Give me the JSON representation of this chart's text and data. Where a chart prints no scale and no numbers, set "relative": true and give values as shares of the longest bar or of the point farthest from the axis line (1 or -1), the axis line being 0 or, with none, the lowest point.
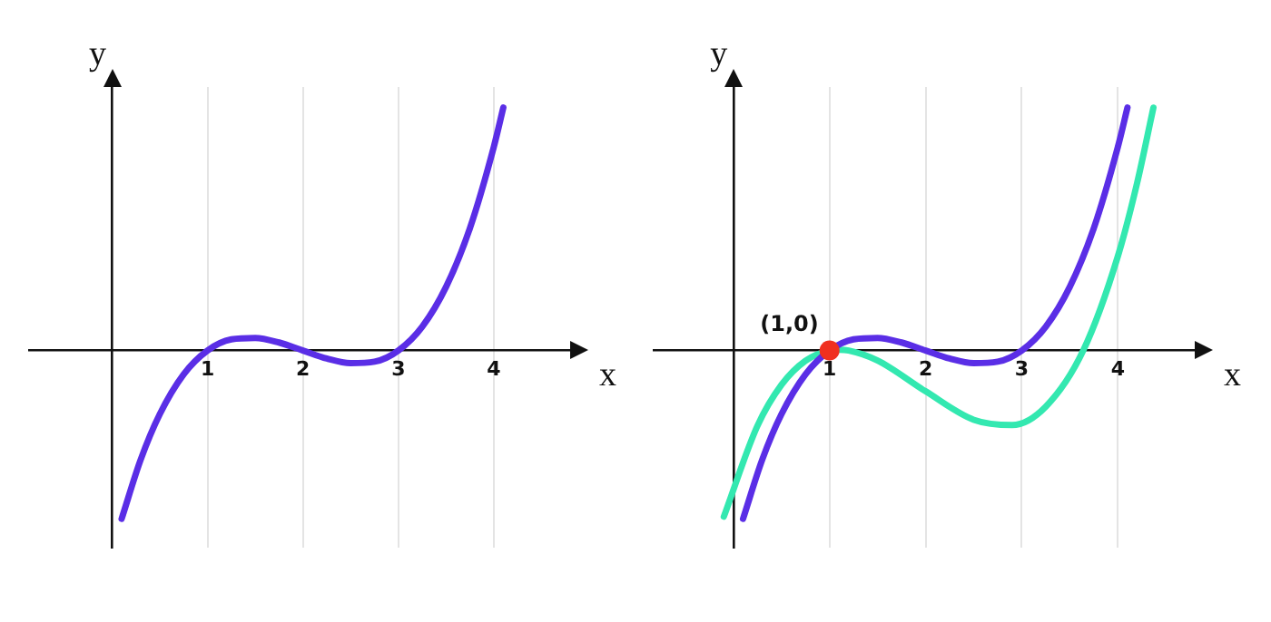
{
  "chart_data": [
    {
      "type": "line",
      "relative": true,
      "xlabel": "x",
      "ylabel": "y",
      "xlim": [
        -0.87,
        4.8
      ],
      "xticks": [
        1,
        2,
        3,
        4
      ],
      "grid": "x",
      "tick_labels": "x",
      "series": [
        {
          "color": "#5a2ee6",
          "x": [
            0.1,
            0.3,
            0.5,
            0.75,
            1,
            1.25,
            1.5,
            1.75,
            2,
            2.25,
            2.5,
            2.75,
            3,
            3.25,
            3.5,
            3.75,
            4,
            4.1
          ],
          "values": [
            -0.693,
            -0.449,
            -0.262,
            -0.098,
            0,
            0.046,
            0.052,
            0.033,
            0,
            -0.033,
            -0.052,
            -0.046,
            0,
            0.098,
            0.262,
            0.504,
            0.838,
            1.0
          ]
        }
      ]
    },
    {
      "type": "line",
      "relative": true,
      "xlabel": "x",
      "ylabel": "y",
      "xlim": [
        -0.83,
        4.8
      ],
      "xticks": [
        1,
        2,
        3,
        4
      ],
      "grid": "x",
      "tick_labels": "x",
      "annotations": [
        {
          "text": "(1,0)",
          "x": 1,
          "y": 0
        }
      ],
      "series": [
        {
          "color": "#5a2ee6",
          "x": [
            0.1,
            0.3,
            0.5,
            0.75,
            1,
            1.25,
            1.5,
            1.75,
            2,
            2.25,
            2.5,
            2.75,
            3,
            3.25,
            3.5,
            3.75,
            4,
            4.1
          ],
          "values": [
            -0.693,
            -0.449,
            -0.262,
            -0.098,
            0,
            0.046,
            0.052,
            0.033,
            0,
            -0.033,
            -0.052,
            -0.046,
            0,
            0.098,
            0.262,
            0.504,
            0.838,
            1.0
          ]
        },
        {
          "color": "#33e8b0",
          "x": [
            -0.1,
            0.25,
            0.5,
            0.75,
            1,
            1.1,
            1.2,
            1.5,
            2,
            2.5,
            2.9,
            3.25,
            3.64,
            4,
            4.2,
            4.37
          ],
          "values": [
            -0.684,
            -0.31,
            -0.141,
            -0.042,
            0,
            0.003,
            0,
            -0.041,
            -0.168,
            -0.285,
            -0.307,
            -0.231,
            0,
            0.388,
            0.689,
            1.0
          ]
        }
      ]
    }
  ]
}
